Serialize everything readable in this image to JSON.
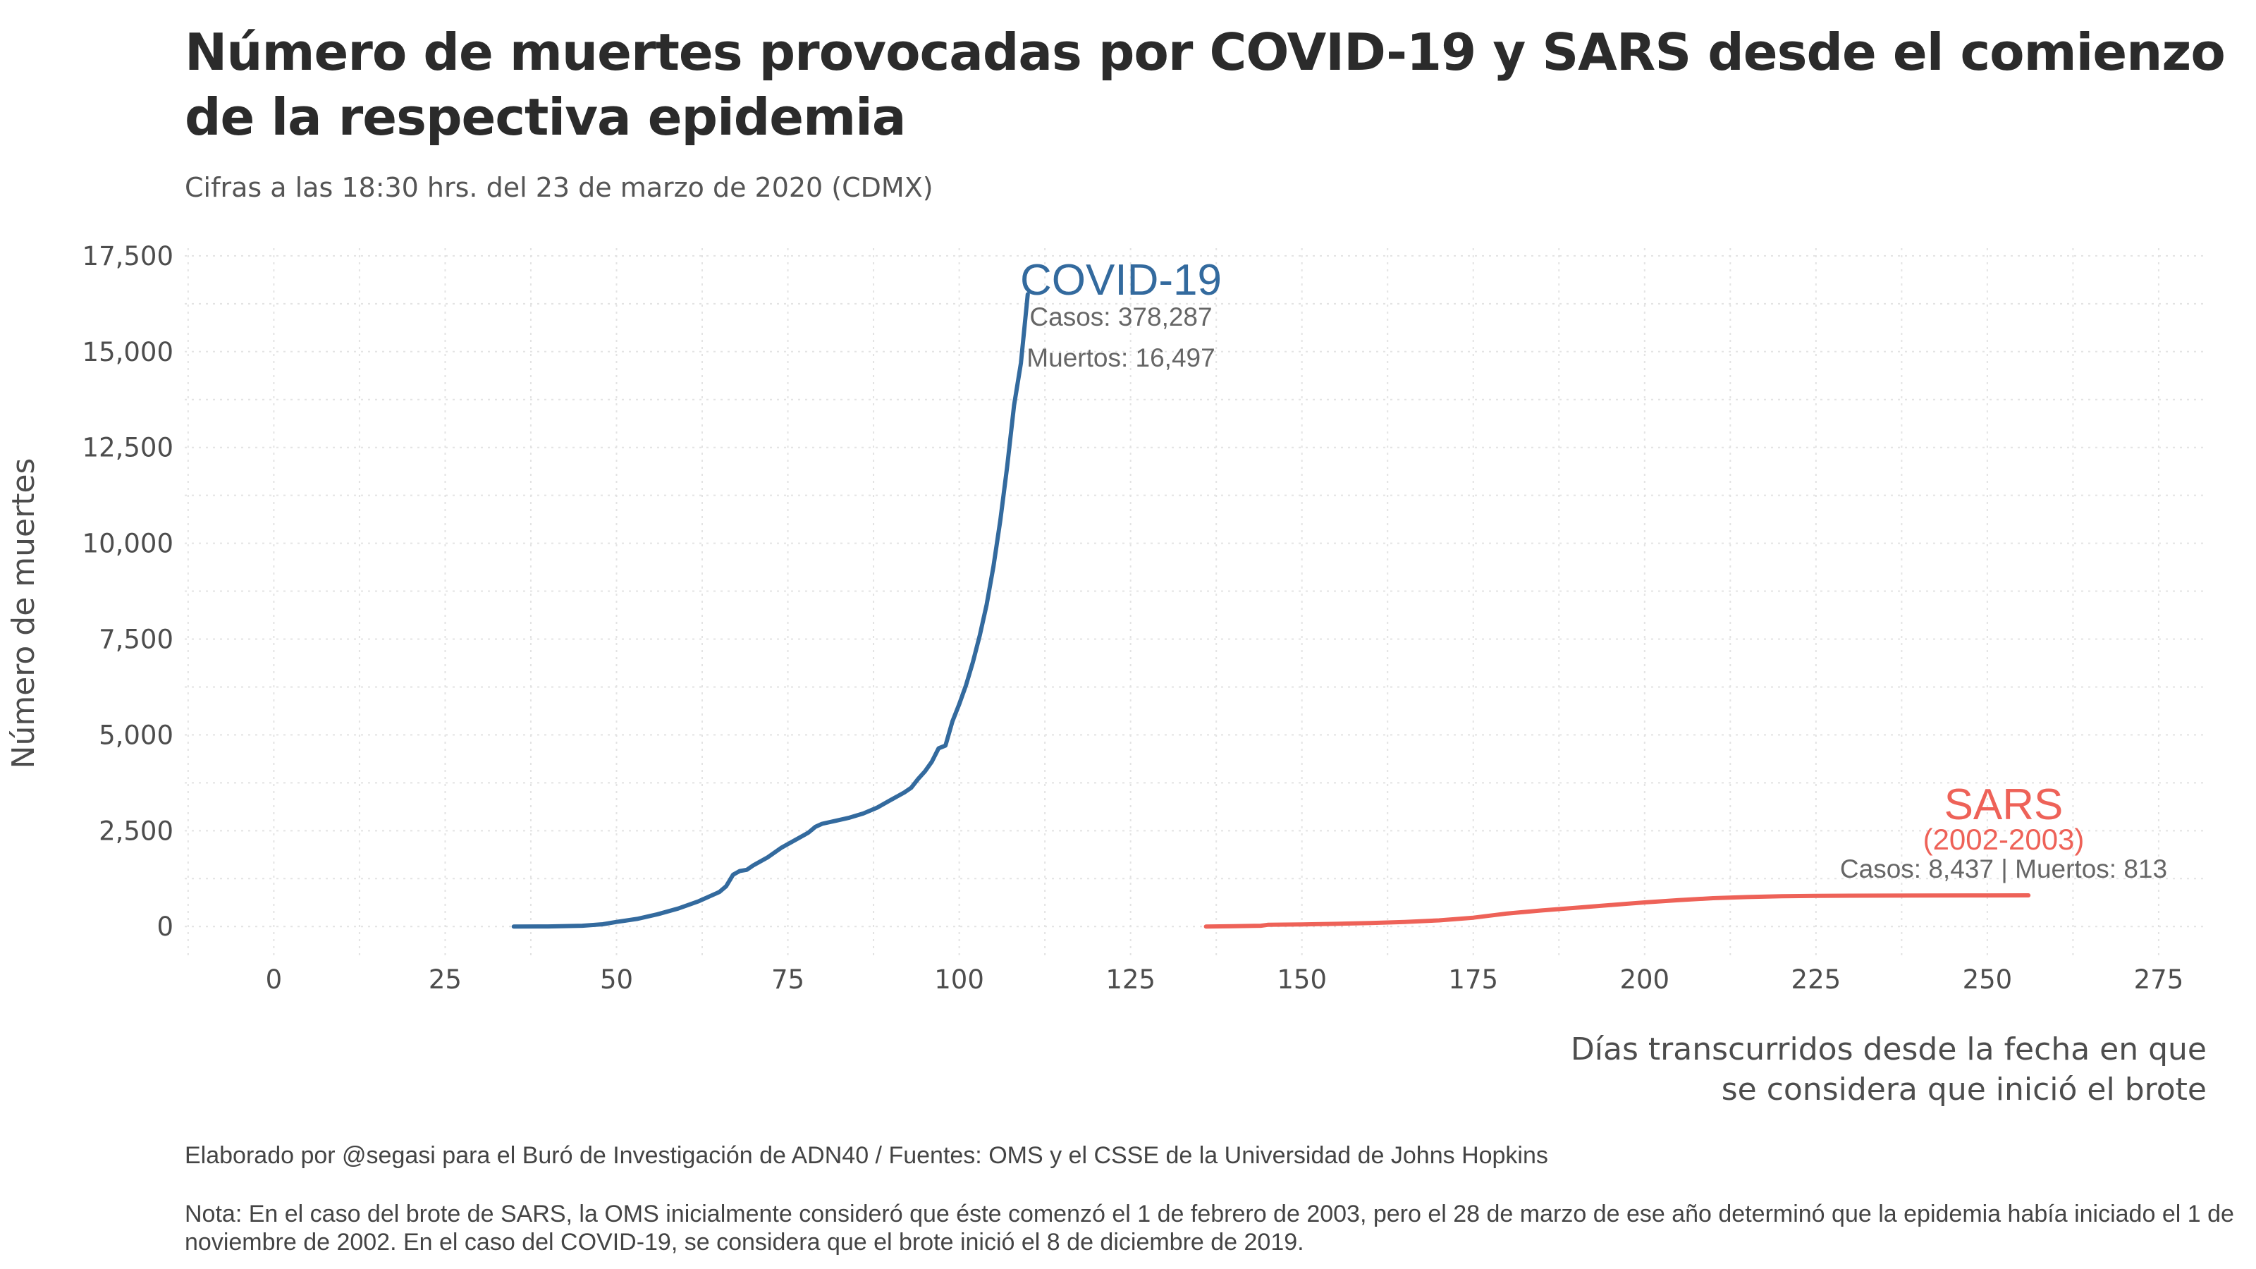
{
  "header": {
    "title": "Número de muertes provocadas por COVID-19 y SARS desde el comienzo de la respectiva epidemia",
    "subtitle": "Cifras a las 18:30 hrs. del 23 de marzo de 2020 (CDMX)"
  },
  "footer": {
    "caption": "Elaborado por @segasi para el Buró de Investigación de ADN40 / Fuentes: OMS y el CSSE de la Universidad de Johns Hopkins",
    "note": "Nota: En el caso del brote de SARS, la OMS inicialmente consideró que éste comenzó el 1 de febrero de 2003, pero el 28 de marzo de ese año determinó que la epidemia había iniciado el 1 de noviembre de 2002. En el caso del COVID-19, se considera que el brote inició el 8 de diciembre de 2019."
  },
  "chart_data": {
    "type": "line",
    "ylabel": "Número de muertes",
    "xlabel_lines": [
      "Días transcurridos desde la fecha en que",
      "se considera que inició el brote"
    ],
    "xlim": [
      -13,
      282
    ],
    "ylim": [
      -750,
      17700
    ],
    "x_ticks": [
      0,
      25,
      50,
      75,
      100,
      125,
      150,
      175,
      200,
      225,
      250,
      275
    ],
    "y_ticks": [
      0,
      2500,
      5000,
      7500,
      10000,
      12500,
      15000,
      17500
    ],
    "y_tick_labels": [
      "0",
      "2,500",
      "5,000",
      "7,500",
      "10,000",
      "12,500",
      "15,000",
      "17,500"
    ],
    "grid": true,
    "series": [
      {
        "name": "COVID-19",
        "color": "#336a9e",
        "annotation": {
          "name": "COVID-19",
          "cases": "Casos: 378,287",
          "deaths": "Muertos: 16,497"
        },
        "points": [
          [
            35,
            0
          ],
          [
            40,
            2
          ],
          [
            45,
            20
          ],
          [
            48,
            60
          ],
          [
            50,
            120
          ],
          [
            53,
            200
          ],
          [
            56,
            320
          ],
          [
            59,
            470
          ],
          [
            62,
            660
          ],
          [
            65,
            900
          ],
          [
            66,
            1050
          ],
          [
            67,
            1350
          ],
          [
            68,
            1450
          ],
          [
            69,
            1480
          ],
          [
            70,
            1600
          ],
          [
            72,
            1800
          ],
          [
            74,
            2050
          ],
          [
            76,
            2250
          ],
          [
            78,
            2450
          ],
          [
            79,
            2600
          ],
          [
            80,
            2680
          ],
          [
            82,
            2760
          ],
          [
            84,
            2840
          ],
          [
            86,
            2950
          ],
          [
            88,
            3100
          ],
          [
            90,
            3300
          ],
          [
            92,
            3500
          ],
          [
            93,
            3620
          ],
          [
            94,
            3850
          ],
          [
            95,
            4050
          ],
          [
            96,
            4300
          ],
          [
            97,
            4650
          ],
          [
            98,
            4720
          ],
          [
            99,
            5350
          ],
          [
            100,
            5800
          ],
          [
            101,
            6300
          ],
          [
            102,
            6900
          ],
          [
            103,
            7600
          ],
          [
            104,
            8400
          ],
          [
            105,
            9400
          ],
          [
            106,
            10600
          ],
          [
            107,
            12000
          ],
          [
            108,
            13600
          ],
          [
            109,
            14700
          ],
          [
            110,
            16497
          ]
        ]
      },
      {
        "name": "SARS",
        "color": "#ee6258",
        "annotation": {
          "name": "SARS",
          "period": "(2002-2003)",
          "detail": "Casos: 8,437 | Muertos: 813"
        },
        "points": [
          [
            136,
            0
          ],
          [
            140,
            10
          ],
          [
            144,
            20
          ],
          [
            145,
            45
          ],
          [
            150,
            55
          ],
          [
            155,
            70
          ],
          [
            160,
            90
          ],
          [
            165,
            120
          ],
          [
            170,
            160
          ],
          [
            175,
            230
          ],
          [
            180,
            340
          ],
          [
            185,
            420
          ],
          [
            190,
            490
          ],
          [
            195,
            560
          ],
          [
            200,
            630
          ],
          [
            205,
            690
          ],
          [
            210,
            740
          ],
          [
            215,
            770
          ],
          [
            220,
            790
          ],
          [
            225,
            800
          ],
          [
            230,
            805
          ],
          [
            240,
            810
          ],
          [
            250,
            812
          ],
          [
            256,
            813
          ]
        ]
      }
    ]
  }
}
